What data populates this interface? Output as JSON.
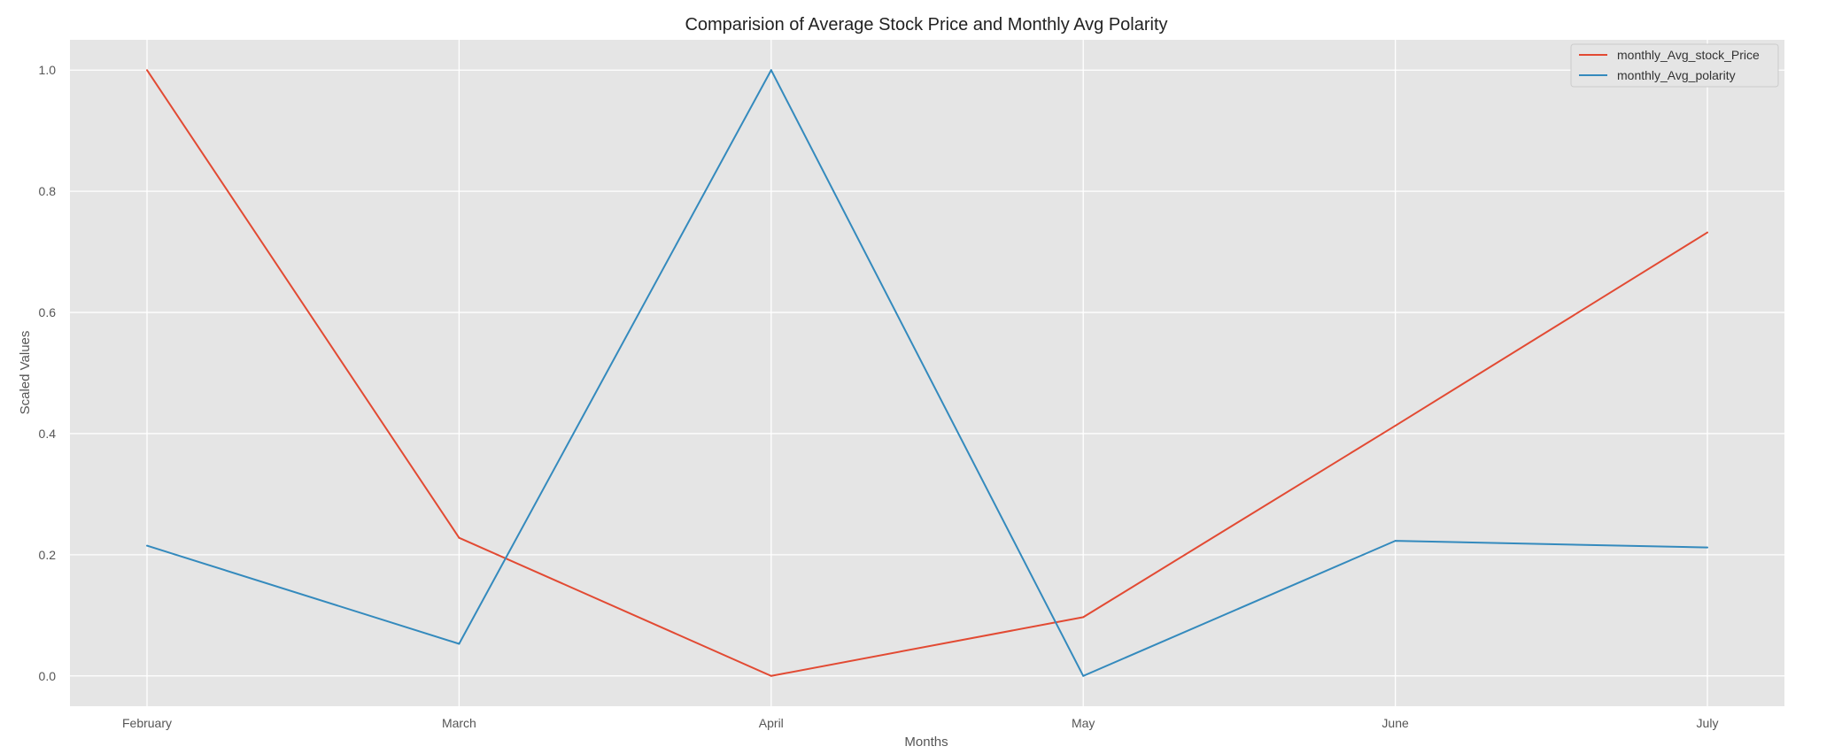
{
  "chart_data": {
    "type": "line",
    "title": "Comparision of Average Stock Price and Monthly Avg Polarity",
    "xlabel": "Months",
    "ylabel": "Scaled Values",
    "categories": [
      "February",
      "March",
      "April",
      "May",
      "June",
      "July"
    ],
    "yticks": [
      "0.0",
      "0.2",
      "0.4",
      "0.6",
      "0.8",
      "1.0"
    ],
    "ylim": [
      -0.05,
      1.05
    ],
    "grid": true,
    "legend_position": "top-right",
    "series": [
      {
        "name": "monthly_Avg_stock_Price",
        "color": "#e24a33",
        "values": [
          1.0,
          0.228,
          0.0,
          0.097,
          0.413,
          0.732
        ]
      },
      {
        "name": "monthly_Avg_polarity",
        "color": "#348abd",
        "values": [
          0.215,
          0.053,
          1.0,
          0.0,
          0.223,
          0.212
        ]
      }
    ],
    "background_color": "#e5e5e5",
    "grid_color": "#ffffff"
  }
}
